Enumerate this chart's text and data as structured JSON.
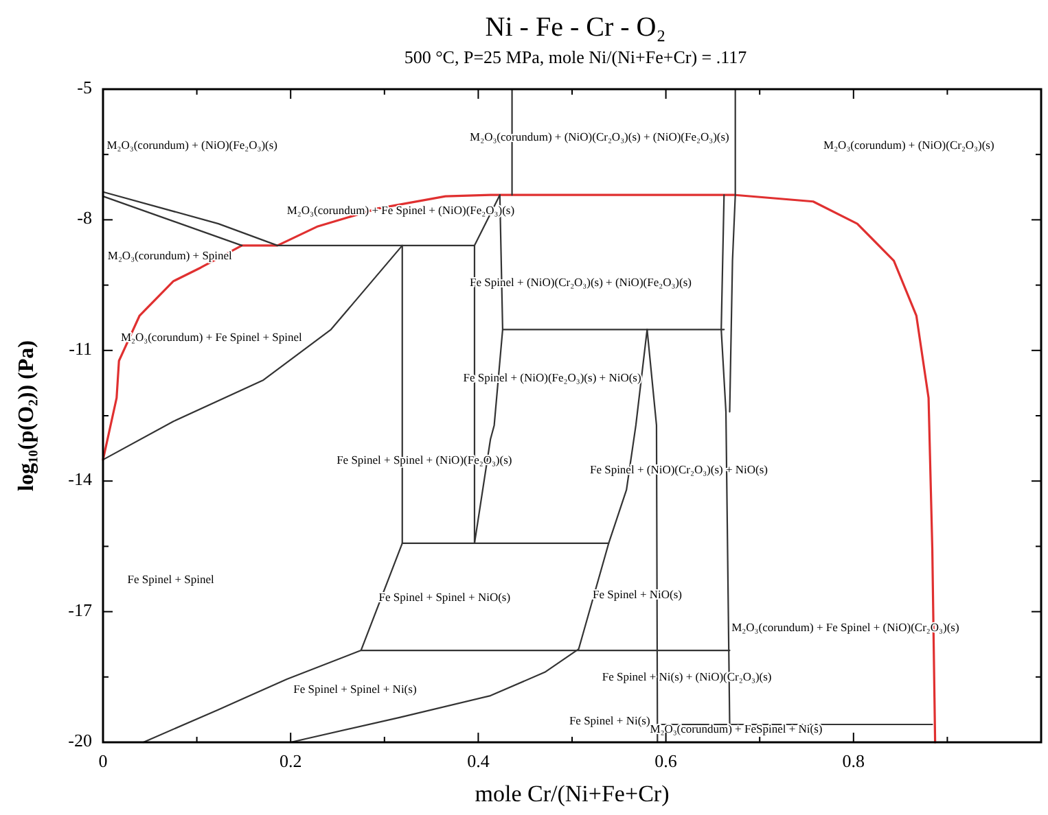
{
  "chart_data": {
    "type": "line",
    "title": "Ni - Fe - Cr - O₂",
    "subtitle": "500 °C, P=25 MPa, mole Ni/(Ni+Fe+Cr) = .117",
    "xlabel": "mole Cr/(Ni+Fe+Cr)",
    "ylabel": "log₁₀(p(O₂)) (Pa)",
    "xlim": [
      0,
      1
    ],
    "ylim": [
      -20,
      -5
    ],
    "xticks": [
      0,
      {
        "value": 0.1,
        "label": null
      },
      0.2,
      {
        "value": 0.3,
        "label": null
      },
      0.4,
      {
        "value": 0.5,
        "label": null
      },
      0.6,
      {
        "value": 0.7,
        "label": null
      },
      0.8,
      {
        "value": 0.9,
        "label": null
      }
    ],
    "yticks": [
      -20,
      {
        "value": -18.5,
        "label": null
      },
      -17,
      {
        "value": -15.5,
        "label": null
      },
      -14,
      {
        "value": -12.5,
        "label": null
      },
      -11,
      {
        "value": -9.5,
        "label": null
      },
      -8,
      {
        "value": -6.5,
        "label": null
      },
      -5
    ],
    "marker": "none",
    "line_style": "solid",
    "grid": false,
    "series": [
      {
        "color": "#e03030",
        "x": [
          0,
          0.0145,
          0.017,
          0.039,
          0.075,
          0.104,
          0.148,
          0.186,
          0.229,
          0.293,
          0.365,
          0.413,
          0.674,
          0.757,
          0.804,
          0.843,
          0.867,
          0.88,
          0.884,
          0.887
        ],
        "values": [
          -13.51,
          -12.09,
          -11.24,
          -10.2,
          -9.41,
          -9.1,
          -8.59,
          -8.59,
          -8.15,
          -7.74,
          -7.46,
          -7.43,
          -7.43,
          -7.58,
          -8.09,
          -8.94,
          -10.2,
          -12.09,
          -15.56,
          -20
        ]
      },
      {
        "color": "#333333",
        "x": [
          0.148,
          0,
          0,
          0.123,
          0.186,
          0.396,
          0.423
        ],
        "values": [
          -8.59,
          -7.46,
          -7.36,
          -8.09,
          -8.59,
          -8.59,
          -7.43
        ]
      },
      {
        "color": "#333333",
        "x": [
          0.319,
          0.319
        ],
        "values": [
          -8.59,
          -15.43
        ]
      },
      {
        "color": "#333333",
        "x": [
          0.396,
          0.396
        ],
        "values": [
          -8.59,
          -15.43
        ]
      },
      {
        "color": "#333333",
        "x": [
          0,
          0.075,
          0.171,
          0.243,
          0.319
        ],
        "values": [
          -13.51,
          -12.63,
          -11.68,
          -10.52,
          -8.59
        ]
      },
      {
        "color": "#333333",
        "x": [
          0.436,
          0.436
        ],
        "values": [
          -5,
          -7.43
        ]
      },
      {
        "color": "#333333",
        "x": [
          0.674,
          0.674,
          0.671,
          0.668
        ],
        "values": [
          -5,
          -7.43,
          -8.94,
          -12.41
        ]
      },
      {
        "color": "#333333",
        "x": [
          0.423,
          0.426,
          0.417,
          0.413,
          0.396
        ],
        "values": [
          -7.43,
          -10.52,
          -12.72,
          -13.04,
          -15.43
        ]
      },
      {
        "color": "#333333",
        "x": [
          0.426,
          0.662
        ],
        "values": [
          -10.52,
          -10.52
        ]
      },
      {
        "color": "#333333",
        "x": [
          0.58,
          0.568,
          0.558,
          0.539,
          0.507,
          0.471,
          0.413,
          0.316,
          0.2
        ],
        "values": [
          -10.52,
          -12.72,
          -14.2,
          -15.43,
          -17.86,
          -18.39,
          -18.93,
          -19.43,
          -20
        ]
      },
      {
        "color": "#333333",
        "x": [
          0.58,
          0.59,
          0.591
        ],
        "values": [
          -10.52,
          -12.72,
          -20
        ]
      },
      {
        "color": "#333333",
        "x": [
          0.662,
          0.659,
          0.664,
          0.668
        ],
        "values": [
          -7.43,
          -10.52,
          -12.41,
          -19.59
        ]
      },
      {
        "color": "#333333",
        "x": [
          0.275,
          0.319,
          0.539
        ],
        "values": [
          -17.89,
          -15.43,
          -15.43
        ]
      },
      {
        "color": "#333333",
        "x": [
          0.043,
          0.123,
          0.196,
          0.275,
          0.668
        ],
        "values": [
          -20,
          -19.25,
          -18.55,
          -17.89,
          -17.89
        ]
      },
      {
        "color": "#333333",
        "x": [
          0.591,
          0.884
        ],
        "values": [
          -19.59,
          -19.59
        ]
      }
    ],
    "annotations": [
      "M₂O₃(corundum) + (NiO)(Fe₂O₃)(s)",
      "M₂O₃(corundum) + (NiO)(Cr₂O₃)(s) + (NiO)(Fe₂O₃)(s)",
      "M₂O₃(corundum) + (NiO)(Cr₂O₃)(s)",
      "M₂O₃(corundum) + Fe Spinel + (NiO)(Fe₂O₃)(s)",
      "M₂O₃(corundum) + Spinel",
      "Fe Spinel + (NiO)(Cr₂O₃)(s) + (NiO)(Fe₂O₃)(s)",
      "M₂O₃(corundum) + Fe Spinel + Spinel",
      "Fe Spinel + (NiO)(Fe₂O₃)(s) + NiO(s)",
      "Fe Spinel + Spinel + (NiO)(Fe₂O₃)(s)",
      "Fe Spinel + (NiO)(Cr₂O₃)(s) + NiO(s)",
      "Fe Spinel + Spinel",
      "Fe Spinel + Spinel + NiO(s)",
      "Fe Spinel + NiO(s)",
      "M₂O₃(corundum) + Fe Spinel + (NiO)(Cr₂O₃)(s)",
      "Fe Spinel + Ni(s) + (NiO)(Cr₂O₃)(s)",
      "Fe Spinel + Spinel + Ni(s)",
      "Fe Spinel + Ni(s)",
      "M₂O₃(corundum) + FeSpinel + Ni(s)"
    ]
  }
}
